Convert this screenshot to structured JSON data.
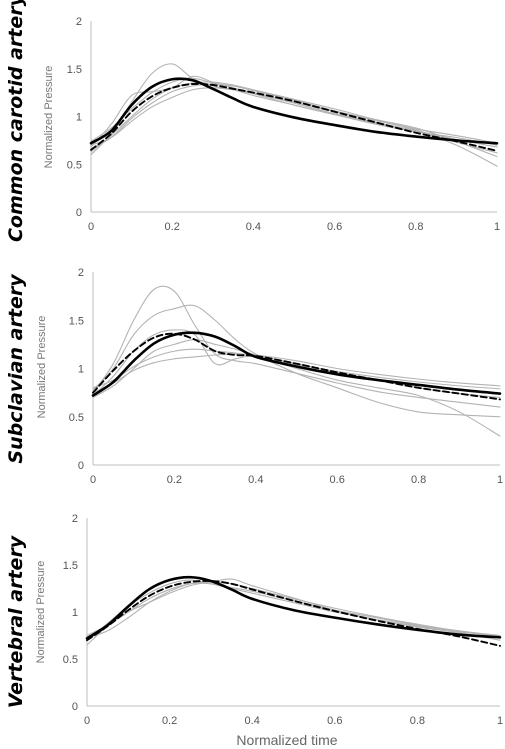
{
  "colors": {
    "individual": "#b3b3b3",
    "solid": "#000000",
    "dashed": "#000000",
    "axis": "#bfbfbf"
  },
  "chart_data": [
    {
      "type": "line",
      "title": "Common carotid artery",
      "ylabel": "Normalized Pressure",
      "xlabel": "",
      "xlim": [
        0,
        1
      ],
      "ylim": [
        0,
        2
      ],
      "xticks": [
        "0",
        "0.2",
        "0.4",
        "0.6",
        "0.8",
        "1"
      ],
      "yticks": [
        "0",
        "0.5",
        "1",
        "1.5",
        "2"
      ],
      "grid": false,
      "series": [
        {
          "style": "solid",
          "x": [
            0,
            0.05,
            0.1,
            0.15,
            0.2,
            0.25,
            0.3,
            0.35,
            0.4,
            0.5,
            0.6,
            0.7,
            0.8,
            0.9,
            1
          ],
          "y": [
            0.72,
            0.85,
            1.12,
            1.31,
            1.39,
            1.38,
            1.29,
            1.19,
            1.1,
            0.99,
            0.91,
            0.84,
            0.79,
            0.75,
            0.72
          ]
        },
        {
          "style": "dashed",
          "x": [
            0,
            0.05,
            0.1,
            0.15,
            0.2,
            0.25,
            0.3,
            0.35,
            0.4,
            0.5,
            0.6,
            0.7,
            0.8,
            0.9,
            1
          ],
          "y": [
            0.65,
            0.82,
            1.05,
            1.21,
            1.3,
            1.34,
            1.33,
            1.29,
            1.25,
            1.16,
            1.05,
            0.94,
            0.83,
            0.74,
            0.64
          ]
        },
        {
          "style": "individual",
          "x": [
            0,
            0.05,
            0.1,
            0.15,
            0.2,
            0.25,
            0.3,
            0.35,
            0.4,
            0.5,
            0.6,
            0.7,
            0.8,
            0.9,
            1
          ],
          "y": [
            0.6,
            0.82,
            1.15,
            1.45,
            1.55,
            1.4,
            1.32,
            1.28,
            1.22,
            1.12,
            1.02,
            0.93,
            0.85,
            0.7,
            0.48
          ]
        },
        {
          "style": "individual",
          "x": [
            0,
            0.05,
            0.1,
            0.15,
            0.2,
            0.25,
            0.3,
            0.35,
            0.4,
            0.5,
            0.6,
            0.7,
            0.8,
            0.9,
            1
          ],
          "y": [
            0.68,
            0.92,
            1.22,
            1.26,
            1.3,
            1.42,
            1.36,
            1.3,
            1.25,
            1.14,
            1.03,
            0.94,
            0.85,
            0.76,
            0.68
          ]
        },
        {
          "style": "individual",
          "x": [
            0,
            0.05,
            0.1,
            0.15,
            0.2,
            0.25,
            0.3,
            0.35,
            0.4,
            0.5,
            0.6,
            0.7,
            0.8,
            0.9,
            1
          ],
          "y": [
            0.7,
            0.78,
            0.95,
            1.1,
            1.2,
            1.28,
            1.3,
            1.28,
            1.24,
            1.15,
            1.05,
            0.96,
            0.87,
            0.8,
            0.72
          ]
        },
        {
          "style": "individual",
          "x": [
            0,
            0.05,
            0.1,
            0.15,
            0.2,
            0.25,
            0.3,
            0.35,
            0.4,
            0.5,
            0.6,
            0.7,
            0.8,
            0.9,
            1
          ],
          "y": [
            0.63,
            0.8,
            1.0,
            1.18,
            1.3,
            1.35,
            1.36,
            1.33,
            1.28,
            1.18,
            1.08,
            0.97,
            0.88,
            0.74,
            0.58
          ]
        },
        {
          "style": "individual",
          "x": [
            0,
            0.05,
            0.1,
            0.15,
            0.2,
            0.25,
            0.3,
            0.35,
            0.4,
            0.5,
            0.6,
            0.7,
            0.8,
            0.9,
            1
          ],
          "y": [
            0.74,
            0.88,
            1.08,
            1.25,
            1.36,
            1.4,
            1.35,
            1.3,
            1.24,
            1.12,
            1.02,
            0.92,
            0.84,
            0.78,
            0.7
          ]
        },
        {
          "style": "individual",
          "x": [
            0,
            0.05,
            0.1,
            0.15,
            0.2,
            0.25,
            0.3,
            0.35,
            0.4,
            0.5,
            0.6,
            0.7,
            0.8,
            0.9,
            1
          ],
          "y": [
            0.66,
            0.78,
            0.98,
            1.14,
            1.26,
            1.32,
            1.34,
            1.32,
            1.27,
            1.17,
            1.06,
            0.96,
            0.86,
            0.73,
            0.62
          ]
        }
      ]
    },
    {
      "type": "line",
      "title": "Subclavian artery",
      "ylabel": "Normalized Pressure",
      "xlabel": "",
      "xlim": [
        0,
        1
      ],
      "ylim": [
        0,
        2
      ],
      "xticks": [
        "0",
        "0.2",
        "0.4",
        "0.6",
        "0.8",
        "1"
      ],
      "yticks": [
        "0",
        "0.5",
        "1",
        "1.5",
        "2"
      ],
      "grid": false,
      "series": [
        {
          "style": "solid",
          "x": [
            0,
            0.05,
            0.1,
            0.15,
            0.2,
            0.25,
            0.3,
            0.35,
            0.4,
            0.5,
            0.6,
            0.7,
            0.8,
            0.9,
            1
          ],
          "y": [
            0.72,
            0.86,
            1.08,
            1.26,
            1.35,
            1.37,
            1.33,
            1.23,
            1.12,
            1.02,
            0.94,
            0.88,
            0.83,
            0.78,
            0.74
          ]
        },
        {
          "style": "dashed",
          "x": [
            0,
            0.05,
            0.1,
            0.15,
            0.2,
            0.25,
            0.3,
            0.35,
            0.4,
            0.5,
            0.6,
            0.7,
            0.8,
            0.9,
            1
          ],
          "y": [
            0.75,
            0.98,
            1.18,
            1.32,
            1.36,
            1.3,
            1.18,
            1.14,
            1.13,
            1.05,
            0.96,
            0.88,
            0.8,
            0.74,
            0.68
          ]
        },
        {
          "style": "individual",
          "x": [
            0,
            0.05,
            0.1,
            0.15,
            0.2,
            0.25,
            0.3,
            0.35,
            0.4,
            0.5,
            0.6,
            0.7,
            0.8,
            0.9,
            1
          ],
          "y": [
            0.75,
            1.05,
            1.5,
            1.82,
            1.8,
            1.45,
            1.15,
            1.08,
            1.05,
            0.95,
            0.85,
            0.76,
            0.7,
            0.65,
            0.6
          ]
        },
        {
          "style": "individual",
          "x": [
            0,
            0.05,
            0.1,
            0.15,
            0.2,
            0.25,
            0.3,
            0.35,
            0.4,
            0.5,
            0.6,
            0.7,
            0.8,
            0.9,
            1
          ],
          "y": [
            0.78,
            1.0,
            1.35,
            1.55,
            1.62,
            1.65,
            1.5,
            1.3,
            1.15,
            0.95,
            0.8,
            0.65,
            0.55,
            0.52,
            0.5
          ]
        },
        {
          "style": "individual",
          "x": [
            0,
            0.05,
            0.1,
            0.15,
            0.2,
            0.25,
            0.3,
            0.35,
            0.4,
            0.5,
            0.6,
            0.7,
            0.8,
            0.9,
            1
          ],
          "y": [
            0.72,
            0.92,
            1.18,
            1.35,
            1.4,
            1.35,
            1.05,
            1.1,
            1.12,
            1.0,
            0.88,
            0.8,
            0.72,
            0.55,
            0.3
          ]
        },
        {
          "style": "individual",
          "x": [
            0,
            0.05,
            0.1,
            0.15,
            0.2,
            0.25,
            0.3,
            0.35,
            0.4,
            0.5,
            0.6,
            0.7,
            0.8,
            0.9,
            1
          ],
          "y": [
            0.75,
            0.85,
            0.98,
            1.06,
            1.1,
            1.12,
            1.14,
            1.15,
            1.14,
            1.08,
            1.0,
            0.94,
            0.89,
            0.85,
            0.82
          ]
        },
        {
          "style": "individual",
          "x": [
            0,
            0.05,
            0.1,
            0.15,
            0.2,
            0.25,
            0.3,
            0.35,
            0.4,
            0.5,
            0.6,
            0.7,
            0.8,
            0.9,
            1
          ],
          "y": [
            0.8,
            0.88,
            1.02,
            1.12,
            1.18,
            1.2,
            1.18,
            1.16,
            1.12,
            1.04,
            0.97,
            0.91,
            0.86,
            0.82,
            0.79
          ]
        },
        {
          "style": "individual",
          "x": [
            0,
            0.05,
            0.1,
            0.15,
            0.2,
            0.25,
            0.3,
            0.35,
            0.4,
            0.5,
            0.6,
            0.7,
            0.8,
            0.9,
            1
          ],
          "y": [
            0.7,
            0.82,
            1.0,
            1.18,
            1.25,
            1.3,
            1.25,
            1.2,
            1.14,
            1.05,
            0.96,
            0.88,
            0.8,
            0.74,
            0.7
          ]
        }
      ]
    },
    {
      "type": "line",
      "title": "Vertebral artery",
      "ylabel": "Normalized Pressure",
      "xlabel": "Normalized time",
      "xlim": [
        0,
        1
      ],
      "ylim": [
        0,
        2
      ],
      "xticks": [
        "0",
        "0.2",
        "0.4",
        "0.6",
        "0.8",
        "1"
      ],
      "yticks": [
        "0",
        "0.5",
        "1",
        "1.5",
        "2"
      ],
      "grid": false,
      "series": [
        {
          "style": "solid",
          "x": [
            0,
            0.05,
            0.1,
            0.15,
            0.2,
            0.25,
            0.3,
            0.35,
            0.4,
            0.5,
            0.6,
            0.7,
            0.8,
            0.9,
            1
          ],
          "y": [
            0.72,
            0.86,
            1.06,
            1.24,
            1.34,
            1.37,
            1.33,
            1.24,
            1.14,
            1.02,
            0.94,
            0.87,
            0.81,
            0.76,
            0.73
          ]
        },
        {
          "style": "dashed",
          "x": [
            0,
            0.05,
            0.1,
            0.15,
            0.2,
            0.25,
            0.3,
            0.35,
            0.4,
            0.5,
            0.6,
            0.7,
            0.8,
            0.9,
            1
          ],
          "y": [
            0.7,
            0.85,
            1.02,
            1.17,
            1.27,
            1.32,
            1.33,
            1.3,
            1.24,
            1.12,
            1.01,
            0.91,
            0.82,
            0.74,
            0.64
          ]
        },
        {
          "style": "individual",
          "x": [
            0,
            0.05,
            0.1,
            0.15,
            0.2,
            0.25,
            0.3,
            0.35,
            0.4,
            0.5,
            0.6,
            0.7,
            0.8,
            0.9,
            1
          ],
          "y": [
            0.65,
            0.85,
            1.0,
            1.1,
            1.2,
            1.28,
            1.32,
            1.35,
            1.28,
            1.15,
            1.02,
            0.92,
            0.84,
            0.78,
            0.7
          ]
        },
        {
          "style": "individual",
          "x": [
            0,
            0.05,
            0.1,
            0.15,
            0.2,
            0.25,
            0.3,
            0.35,
            0.4,
            0.5,
            0.6,
            0.7,
            0.8,
            0.9,
            1
          ],
          "y": [
            0.72,
            0.8,
            0.94,
            1.1,
            1.22,
            1.3,
            1.3,
            1.26,
            1.22,
            1.12,
            1.02,
            0.94,
            0.86,
            0.8,
            0.74
          ]
        },
        {
          "style": "individual",
          "x": [
            0,
            0.05,
            0.1,
            0.15,
            0.2,
            0.25,
            0.3,
            0.35,
            0.4,
            0.5,
            0.6,
            0.7,
            0.8,
            0.9,
            1
          ],
          "y": [
            0.7,
            0.88,
            1.06,
            1.2,
            1.3,
            1.34,
            1.3,
            1.25,
            1.2,
            1.1,
            1.0,
            0.92,
            0.85,
            0.79,
            0.74
          ]
        },
        {
          "style": "individual",
          "x": [
            0,
            0.05,
            0.1,
            0.15,
            0.2,
            0.25,
            0.3,
            0.35,
            0.4,
            0.5,
            0.6,
            0.7,
            0.8,
            0.9,
            1
          ],
          "y": [
            0.75,
            0.86,
            1.0,
            1.14,
            1.24,
            1.3,
            1.32,
            1.3,
            1.25,
            1.14,
            1.04,
            0.95,
            0.87,
            0.8,
            0.75
          ]
        }
      ]
    }
  ]
}
